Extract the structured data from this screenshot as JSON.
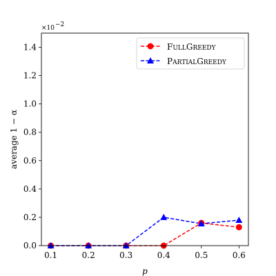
{
  "chart_data": {
    "type": "line",
    "title": "",
    "xlabel": "p",
    "ylabel": "average 1 − α",
    "scale_note": "×10",
    "scale_exponent": "−2",
    "x": [
      0.1,
      0.2,
      0.3,
      0.4,
      0.5,
      0.6
    ],
    "xlim": [
      0.075,
      0.625
    ],
    "ylim": [
      0,
      1.5
    ],
    "xticks": [
      "0.1",
      "0.2",
      "0.3",
      "0.4",
      "0.5",
      "0.6"
    ],
    "yticks": [
      "0.0",
      "0.2",
      "0.4",
      "0.6",
      "0.8",
      "1.0",
      "1.2",
      "1.4"
    ],
    "grid": false,
    "legend_position": "top-right",
    "series": [
      {
        "name_first": "F",
        "name_first_rest": "ULL",
        "name_second": "G",
        "name_second_rest": "REEDY",
        "label": "FullGreedy",
        "values": [
          0.0,
          0.0,
          0.0,
          0.0,
          0.16,
          0.13
        ],
        "color": "#ff0000",
        "marker": "circle",
        "linestyle": "dashed"
      },
      {
        "name_first": "P",
        "name_first_rest": "ARTIAL",
        "name_second": "G",
        "name_second_rest": "REEDY",
        "label": "PartialGreedy",
        "values": [
          0.0,
          0.0,
          0.0,
          0.2,
          0.155,
          0.18
        ],
        "color": "#0000ff",
        "marker": "triangle",
        "linestyle": "dashed"
      }
    ]
  }
}
